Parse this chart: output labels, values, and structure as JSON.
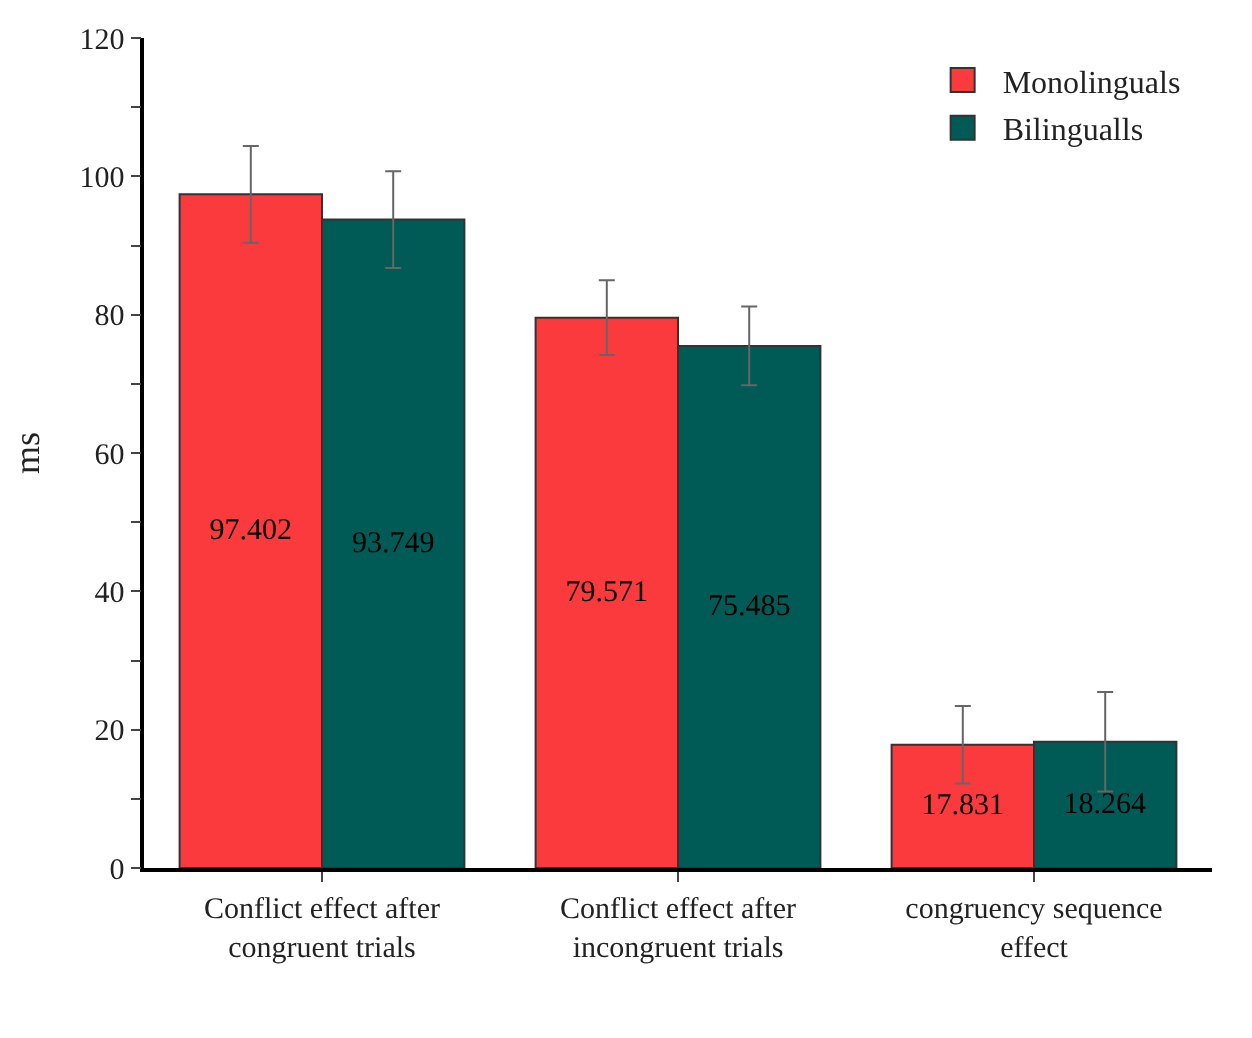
{
  "chart_data": {
    "type": "bar",
    "ylabel": "ms",
    "categories": [
      "Conflict effect after congruent trials",
      "Conflict effect after incongruent trials",
      "congruency sequence effect"
    ],
    "series": [
      {
        "name": "Monolinguals",
        "color": "#fb3a3d",
        "values": [
          97.402,
          79.571,
          17.831
        ],
        "errors": [
          7,
          5.4,
          5.6
        ]
      },
      {
        "name": "Bilingualls",
        "color": "#005a55",
        "values": [
          93.749,
          75.485,
          18.264
        ],
        "errors": [
          7,
          5.7,
          7.2
        ]
      }
    ],
    "ylim": [
      0,
      120
    ],
    "yticks": [
      0,
      {
        "value": 10,
        "label": null
      },
      20,
      {
        "value": 30,
        "label": null
      },
      40,
      {
        "value": 50,
        "label": null
      },
      60,
      {
        "value": 70,
        "label": null
      },
      80,
      {
        "value": 90,
        "label": null
      },
      100,
      {
        "value": 110,
        "label": null
      },
      120
    ],
    "data_labels": true,
    "legend": "top right"
  }
}
